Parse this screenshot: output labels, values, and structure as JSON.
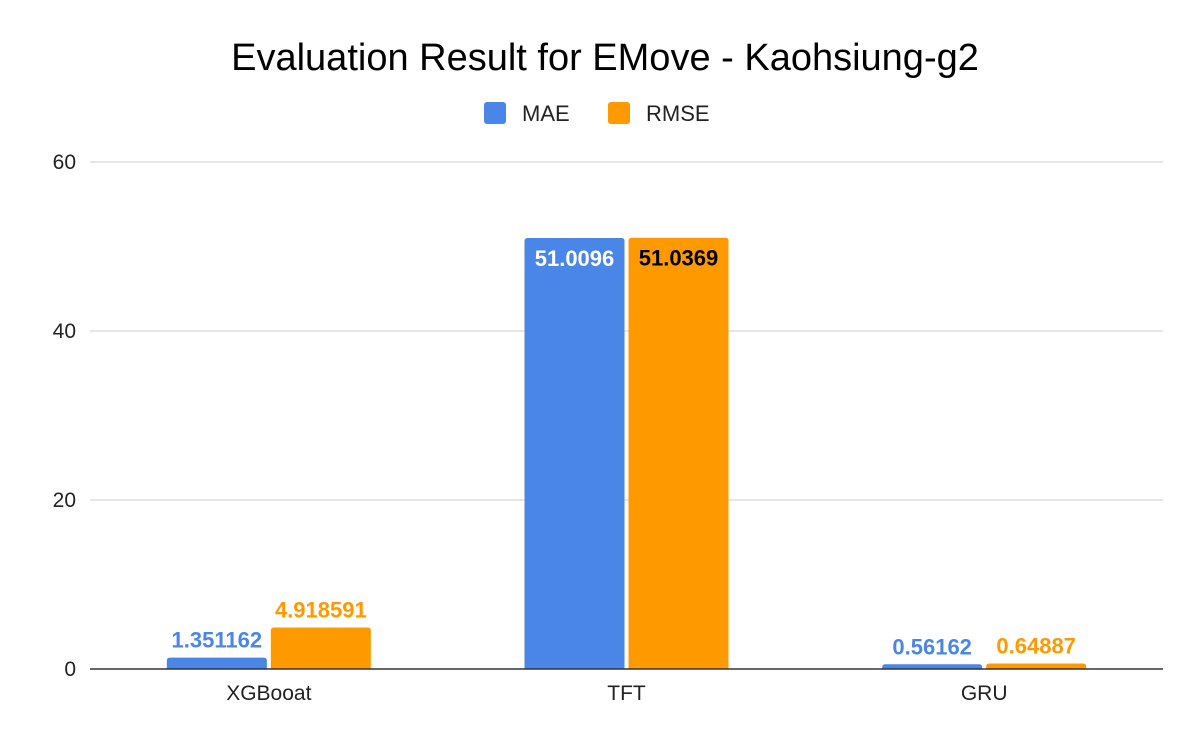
{
  "chart_data": {
    "type": "bar",
    "title": "Evaluation Result for EMove - Kaohsiung-g2",
    "categories": [
      "XGBooat",
      "TFT",
      "GRU"
    ],
    "series": [
      {
        "name": "MAE",
        "color": "#4A86E8",
        "values": [
          1.351162,
          51.0096,
          0.56162
        ],
        "labels": [
          "1.351162",
          "51.0096",
          "0.56162"
        ]
      },
      {
        "name": "RMSE",
        "color": "#FF9900",
        "values": [
          4.918591,
          51.0369,
          0.64887
        ],
        "labels": [
          "4.918591",
          "51.0369",
          "0.64887"
        ]
      }
    ],
    "yticks": [
      "0",
      "20",
      "40",
      "60"
    ],
    "ylim": [
      0,
      60
    ],
    "grid": true,
    "legend_position": "top-center"
  }
}
